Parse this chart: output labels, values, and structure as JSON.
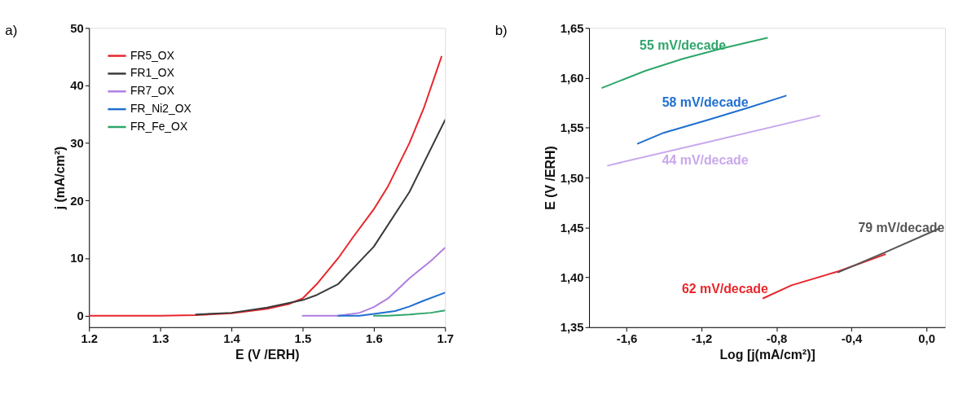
{
  "chart_data": [
    {
      "type": "line",
      "title": "a)",
      "xlabel": "E (V /ERH)",
      "ylabel": "j (mA/cm²)",
      "xlim": [
        1.2,
        1.7
      ],
      "ylim": [
        -2,
        50
      ],
      "xticks": [
        1.2,
        1.3,
        1.4,
        1.5,
        1.6,
        1.7
      ],
      "yticks": [
        0,
        10,
        20,
        30,
        40,
        50
      ],
      "grid": false,
      "legend": "top left",
      "marker": "none",
      "line_style": "solid",
      "series": [
        {
          "name": "FR5_OX",
          "color": "#e8262b",
          "x": [
            1.2,
            1.3,
            1.35,
            1.4,
            1.45,
            1.48,
            1.5,
            1.52,
            1.55,
            1.57,
            1.6,
            1.62,
            1.65,
            1.67,
            1.695
          ],
          "values": [
            0,
            0,
            0.1,
            0.4,
            1.2,
            2.0,
            3.0,
            5.5,
            10,
            13.5,
            18.5,
            22.5,
            30,
            36,
            45
          ]
        },
        {
          "name": "FR1_OX",
          "color": "#3a3a3a",
          "x": [
            1.35,
            1.4,
            1.45,
            1.5,
            1.52,
            1.55,
            1.6,
            1.65,
            1.7
          ],
          "values": [
            0.2,
            0.5,
            1.4,
            2.7,
            3.6,
            5.5,
            12,
            21.5,
            34
          ]
        },
        {
          "name": "FR7_OX",
          "color": "#b07ee0",
          "x": [
            1.5,
            1.55,
            1.58,
            1.6,
            1.62,
            1.65,
            1.68,
            1.7
          ],
          "values": [
            0,
            0,
            0.5,
            1.5,
            3,
            6.5,
            9.5,
            11.8
          ]
        },
        {
          "name": "FR_Ni2_OX",
          "color": "#1f6fd0",
          "x": [
            1.55,
            1.58,
            1.6,
            1.63,
            1.65,
            1.67,
            1.7
          ],
          "values": [
            0,
            0,
            0.3,
            0.8,
            1.6,
            2.6,
            4
          ]
        },
        {
          "name": "FR_Fe_OX",
          "color": "#2ea66a",
          "x": [
            1.6,
            1.62,
            1.65,
            1.68,
            1.7
          ],
          "values": [
            0,
            0,
            0.2,
            0.5,
            0.9
          ]
        }
      ]
    },
    {
      "type": "line",
      "title": "b)",
      "xlabel": "Log [j(mA/cm²)]",
      "ylabel": "E (V /ERH)",
      "xlim": [
        -1.8,
        0.1
      ],
      "ylim": [
        1.35,
        1.65
      ],
      "xticks": [
        {
          "value": -1.6,
          "label": "-1,6"
        },
        {
          "value": -1.2,
          "label": "-1,2"
        },
        {
          "value": -0.8,
          "label": "-0,8"
        },
        {
          "value": -0.4,
          "label": "-0,4"
        },
        {
          "value": 0,
          "label": "0,0"
        }
      ],
      "yticks": [
        {
          "value": 1.35,
          "label": "1,35"
        },
        {
          "value": 1.4,
          "label": "1,40"
        },
        {
          "value": 1.45,
          "label": "1,45"
        },
        {
          "value": 1.5,
          "label": "1,50"
        },
        {
          "value": 1.55,
          "label": "1,55"
        },
        {
          "value": 1.6,
          "label": "1,60"
        },
        {
          "value": 1.65,
          "label": "1,65"
        }
      ],
      "grid": false,
      "marker": "none",
      "line_style": "solid",
      "series": [
        {
          "color": "#2ea66a",
          "x": [
            -1.73,
            -1.5,
            -1.3,
            -1.1,
            -0.85
          ],
          "values": [
            1.59,
            1.607,
            1.619,
            1.629,
            1.64
          ]
        },
        {
          "color": "#1f6fd0",
          "x": [
            -1.54,
            -1.4,
            -1.18,
            -0.95,
            -0.75
          ],
          "values": [
            1.534,
            1.545,
            1.557,
            1.57,
            1.582
          ]
        },
        {
          "color": "#c9a8ec",
          "x": [
            -1.7,
            -1.18,
            -0.57
          ],
          "values": [
            1.512,
            1.535,
            1.562
          ]
        },
        {
          "color": "#e8262b",
          "x": [
            -0.87,
            -0.72,
            -0.47,
            -0.22
          ],
          "values": [
            1.379,
            1.392,
            1.406,
            1.423
          ]
        },
        {
          "color": "#555555",
          "x": [
            -0.47,
            -0.22,
            0.07
          ],
          "values": [
            1.405,
            1.425,
            1.449
          ]
        }
      ],
      "annotations": [
        "55 mV/decade",
        "58 mV/decade",
        "44 mV/decade",
        "62 mV/decade",
        "79 mV/decade"
      ]
    }
  ]
}
